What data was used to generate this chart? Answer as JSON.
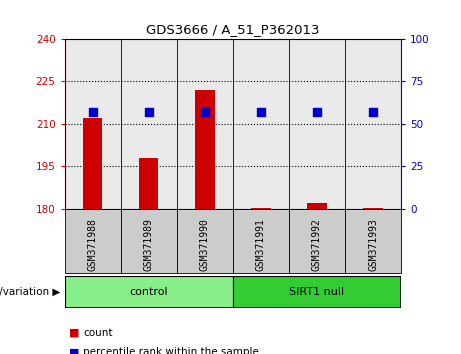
{
  "title": "GDS3666 / A_51_P362013",
  "samples": [
    "GSM371988",
    "GSM371989",
    "GSM371990",
    "GSM371991",
    "GSM371992",
    "GSM371993"
  ],
  "count_values": [
    212,
    198,
    222,
    180.3,
    182,
    180.3
  ],
  "percentile_values": [
    57,
    57,
    57,
    57,
    57,
    57
  ],
  "ylim_left": [
    180,
    240
  ],
  "ylim_right": [
    0,
    100
  ],
  "yticks_left": [
    180,
    195,
    210,
    225,
    240
  ],
  "yticks_right": [
    0,
    25,
    50,
    75,
    100
  ],
  "bar_color": "#cc0000",
  "dot_color": "#0000cc",
  "groups": [
    {
      "label": "control",
      "indices": [
        0,
        1,
        2
      ],
      "color": "#88ee88"
    },
    {
      "label": "SIRT1 null",
      "indices": [
        3,
        4,
        5
      ],
      "color": "#33cc33"
    }
  ],
  "group_label_prefix": "genotype/variation",
  "bar_width": 0.35,
  "dot_size": 30,
  "sample_bg_color": "#cccccc",
  "tick_label_color_left": "#cc0000",
  "tick_label_color_right": "#0000cc",
  "hgrid_values": [
    195,
    210,
    225
  ],
  "legend": [
    {
      "label": "count",
      "color": "#cc0000"
    },
    {
      "label": "percentile rank within the sample",
      "color": "#0000cc"
    }
  ]
}
